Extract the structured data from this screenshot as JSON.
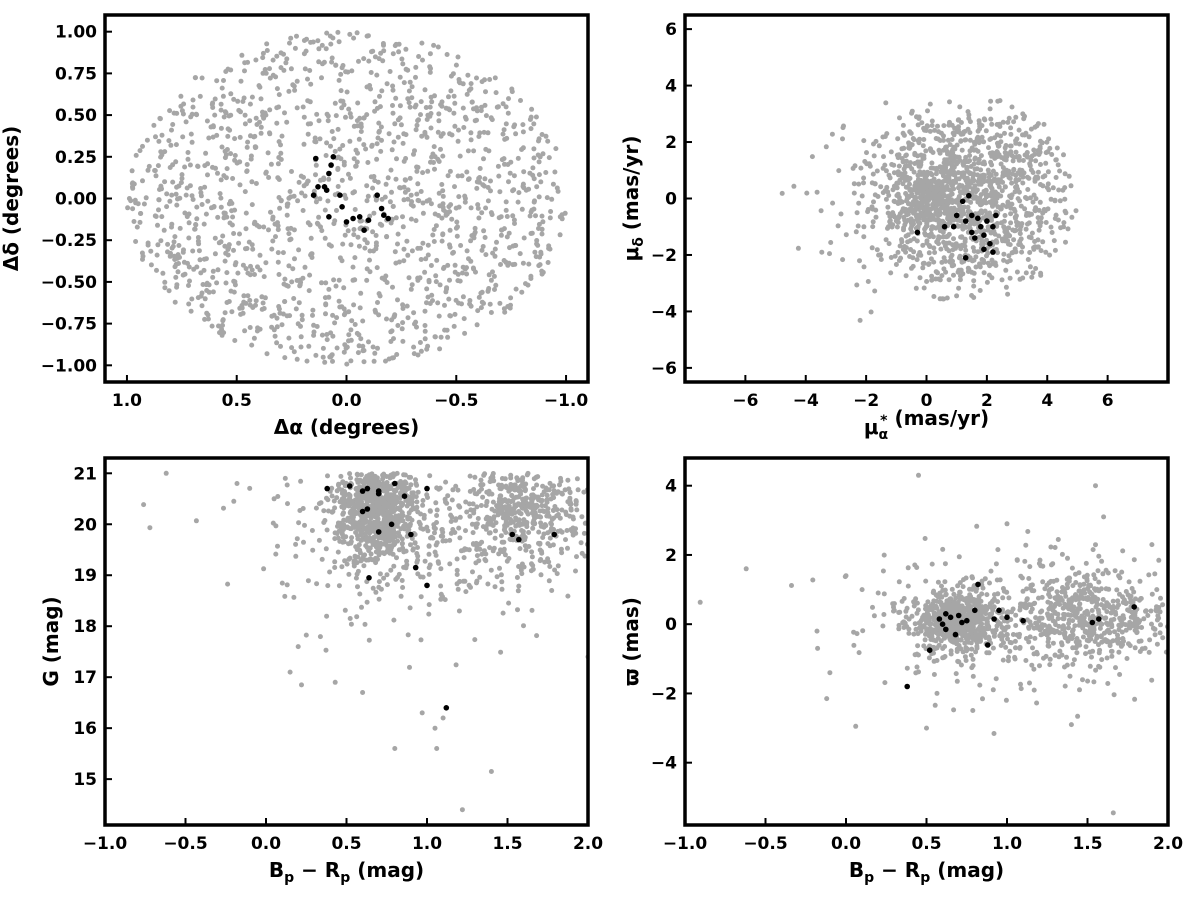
{
  "colors": {
    "field": "#a6a6a6",
    "members": "#000000",
    "frame": "#000000"
  },
  "chart_data": [
    {
      "id": "sky",
      "type": "scatter",
      "xlabel": "Δα (degrees)",
      "ylabel": "Δδ (degrees)",
      "xlim": [
        1.1,
        -1.1
      ],
      "ylim": [
        -1.1,
        1.1
      ],
      "xticks": [
        1.0,
        0.5,
        0.0,
        -0.5,
        -1.0
      ],
      "xtick_labels": [
        "1.0",
        "0.5",
        "0.0",
        "−0.5",
        "−1.0"
      ],
      "yticks": [
        1.0,
        0.75,
        0.5,
        0.25,
        0.0,
        -0.25,
        -0.5,
        -0.75,
        -1.0
      ],
      "ytick_labels": [
        "1.00",
        "0.75",
        "0.50",
        "0.25",
        "0.00",
        "−0.25",
        "−0.50",
        "−0.75",
        "−1.00"
      ],
      "series": [
        {
          "role": "field",
          "color": "#a6a6a6",
          "distribution": "uniform_disk",
          "center": [
            0,
            0
          ],
          "radius": 1.0,
          "count": 1500,
          "seed": 11
        },
        {
          "role": "members",
          "color": "#000000",
          "points": [
            [
              0.14,
              0.24
            ],
            [
              0.08,
              0.15
            ],
            [
              0.07,
              0.2
            ],
            [
              0.06,
              0.25
            ],
            [
              0.13,
              0.07
            ],
            [
              0.09,
              0.05
            ],
            [
              0.1,
              0.07
            ],
            [
              0.15,
              0.02
            ],
            [
              0.08,
              -0.11
            ],
            [
              0.03,
              0.02
            ],
            [
              0.02,
              -0.05
            ],
            [
              0.0,
              -0.14
            ],
            [
              -0.03,
              -0.12
            ],
            [
              -0.06,
              -0.11
            ],
            [
              -0.08,
              -0.19
            ],
            [
              -0.1,
              -0.13
            ],
            [
              -0.14,
              0.02
            ],
            [
              -0.16,
              -0.06
            ],
            [
              -0.17,
              -0.1
            ],
            [
              -0.19,
              -0.12
            ]
          ]
        }
      ]
    },
    {
      "id": "proper-motion",
      "type": "scatter",
      "xlabel_main": "μ",
      "xlabel_sub": "α",
      "xlabel_sup": "*",
      "xlabel_rest": "  (mas/yr)",
      "ylabel_main": "μ",
      "ylabel_sub": "δ",
      "ylabel_rest": " (mas/yr)",
      "xlim": [
        -8,
        8
      ],
      "ylim": [
        -6.5,
        6.5
      ],
      "xticks": [
        -6,
        -4,
        -2,
        0,
        2,
        4,
        6
      ],
      "xtick_labels": [
        "−6",
        "−4",
        "−2",
        "0",
        "2",
        "4",
        "6"
      ],
      "yticks": [
        6,
        4,
        2,
        0,
        -2,
        -4,
        -6
      ],
      "ytick_labels": [
        "6",
        "4",
        "2",
        "0",
        "−2",
        "−4",
        "−6"
      ],
      "series": [
        {
          "role": "field",
          "color": "#a6a6a6",
          "distribution": "clipped_gaussian_disk",
          "center": [
            1.3,
            0.0
          ],
          "radius": 3.7,
          "sigma": [
            1.8,
            1.8
          ],
          "count": 1200,
          "seed": 23
        },
        {
          "role": "field-core",
          "color": "#a6a6a6",
          "distribution": "gaussian",
          "center": [
            0.0,
            0.0
          ],
          "sigma": [
            0.5,
            0.6
          ],
          "count": 250,
          "seed": 31
        },
        {
          "role": "field-halo",
          "color": "#a6a6a6",
          "distribution": "gaussian",
          "center": [
            -1.0,
            -0.5
          ],
          "sigma": [
            1.6,
            1.6
          ],
          "count": 90,
          "seed": 37
        },
        {
          "role": "members",
          "color": "#000000",
          "points": [
            [
              -0.3,
              -1.2
            ],
            [
              0.6,
              -1.0
            ],
            [
              0.9,
              -1.0
            ],
            [
              1.0,
              -0.6
            ],
            [
              1.2,
              -0.1
            ],
            [
              1.3,
              -2.1
            ],
            [
              1.4,
              0.1
            ],
            [
              1.3,
              -0.8
            ],
            [
              1.5,
              -0.6
            ],
            [
              1.5,
              -1.2
            ],
            [
              1.6,
              -1.4
            ],
            [
              1.7,
              -0.7
            ],
            [
              1.8,
              -1.0
            ],
            [
              1.9,
              -1.3
            ],
            [
              2.0,
              -0.8
            ],
            [
              2.1,
              -1.6
            ],
            [
              2.2,
              -1.0
            ],
            [
              2.3,
              -0.6
            ],
            [
              1.9,
              -1.8
            ],
            [
              2.2,
              -1.9
            ]
          ]
        }
      ]
    },
    {
      "id": "cmd",
      "type": "scatter",
      "xlabel_main": "B",
      "xlabel_sub": "p",
      "xlabel_mid": " − R",
      "xlabel_sub2": "p",
      "xlabel_rest": " (mag)",
      "ylabel": "G (mag)",
      "xlim": [
        -1.0,
        2.0
      ],
      "ylim": [
        14.1,
        21.3
      ],
      "xticks": [
        -1.0,
        -0.5,
        0.0,
        0.5,
        1.0,
        1.5,
        2.0
      ],
      "xtick_labels": [
        "−1.0",
        "−0.5",
        "0.0",
        "0.5",
        "1.0",
        "1.5",
        "2.0"
      ],
      "yticks": [
        21,
        20,
        19,
        18,
        17,
        16,
        15
      ],
      "ytick_labels": [
        "21",
        "20",
        "19",
        "18",
        "17",
        "16",
        "15"
      ],
      "series": [
        {
          "role": "field-cluster",
          "color": "#a6a6a6",
          "distribution": "gaussian_clip",
          "center": [
            0.68,
            20.3
          ],
          "sigma": [
            0.13,
            0.55
          ],
          "ymax": 21.0,
          "count": 700,
          "seed": 41
        },
        {
          "role": "field-red",
          "color": "#a6a6a6",
          "distribution": "gaussian_clip",
          "center": [
            1.6,
            20.3
          ],
          "sigma": [
            0.18,
            0.5
          ],
          "ymax": 21.0,
          "count": 300,
          "seed": 43
        },
        {
          "role": "field-spread",
          "color": "#a6a6a6",
          "distribution": "gaussian_clip",
          "center": [
            1.1,
            20.0
          ],
          "sigma": [
            0.55,
            1.0
          ],
          "ymax": 21.0,
          "count": 450,
          "seed": 47
        },
        {
          "role": "field-sparse",
          "color": "#a6a6a6",
          "points": [
            [
              -0.62,
              21.0
            ],
            [
              -0.2,
              20.45
            ],
            [
              -0.18,
              20.8
            ],
            [
              0.15,
              17.1
            ],
            [
              0.2,
              17.6
            ],
            [
              0.43,
              16.9
            ],
            [
              0.6,
              16.7
            ],
            [
              0.8,
              15.6
            ],
            [
              0.97,
              16.3
            ],
            [
              1.06,
              15.6
            ],
            [
              1.22,
              14.4
            ],
            [
              1.4,
              15.15
            ],
            [
              1.05,
              16.0
            ],
            [
              1.1,
              16.2
            ],
            [
              2.0,
              17.4
            ],
            [
              0.12,
              20.9
            ],
            [
              0.05,
              20.5
            ]
          ]
        },
        {
          "role": "members",
          "color": "#000000",
          "points": [
            [
              0.38,
              20.7
            ],
            [
              0.52,
              20.75
            ],
            [
              0.6,
              20.65
            ],
            [
              0.63,
              20.7
            ],
            [
              0.7,
              20.65
            ],
            [
              0.7,
              20.6
            ],
            [
              0.8,
              20.8
            ],
            [
              0.86,
              20.55
            ],
            [
              1.0,
              20.7
            ],
            [
              0.6,
              20.25
            ],
            [
              0.63,
              20.3
            ],
            [
              0.78,
              20.0
            ],
            [
              0.7,
              19.85
            ],
            [
              0.9,
              19.8
            ],
            [
              0.64,
              18.95
            ],
            [
              0.93,
              19.15
            ],
            [
              1.0,
              18.8
            ],
            [
              1.12,
              16.4
            ],
            [
              1.53,
              19.8
            ],
            [
              1.57,
              19.7
            ],
            [
              1.79,
              19.8
            ]
          ]
        }
      ]
    },
    {
      "id": "parallax",
      "type": "scatter",
      "xlabel_main": "B",
      "xlabel_sub": "p",
      "xlabel_mid": " − R",
      "xlabel_sub2": "p",
      "xlabel_rest": " (mag)",
      "ylabel": "ϖ (mas)",
      "xlim": [
        -1.0,
        2.0
      ],
      "ylim": [
        -5.8,
        4.8
      ],
      "xticks": [
        -1.0,
        -0.5,
        0.0,
        0.5,
        1.0,
        1.5,
        2.0
      ],
      "xtick_labels": [
        "−1.0",
        "−0.5",
        "0.0",
        "0.5",
        "1.0",
        "1.5",
        "2.0"
      ],
      "yticks": [
        4,
        2,
        0,
        -2,
        -4
      ],
      "ytick_labels": [
        "4",
        "2",
        "0",
        "−2",
        "−4"
      ],
      "series": [
        {
          "role": "field-cluster",
          "color": "#a6a6a6",
          "distribution": "gaussian",
          "center": [
            0.7,
            0.1
          ],
          "sigma": [
            0.14,
            0.45
          ],
          "count": 650,
          "seed": 53
        },
        {
          "role": "field-red",
          "color": "#a6a6a6",
          "distribution": "gaussian",
          "center": [
            1.5,
            0.2
          ],
          "sigma": [
            0.25,
            0.55
          ],
          "count": 420,
          "seed": 59
        },
        {
          "role": "field-spread",
          "color": "#a6a6a6",
          "distribution": "gaussian",
          "center": [
            1.1,
            0.1
          ],
          "sigma": [
            0.5,
            1.1
          ],
          "count": 330,
          "seed": 61
        },
        {
          "role": "field-sparse",
          "color": "#a6a6a6",
          "points": [
            [
              -0.62,
              1.6
            ],
            [
              -0.18,
              -0.2
            ],
            [
              -0.12,
              -2.15
            ],
            [
              -0.1,
              -1.4
            ],
            [
              0.0,
              1.4
            ],
            [
              0.06,
              -2.95
            ],
            [
              0.3,
              0.4
            ],
            [
              0.45,
              4.3
            ],
            [
              1.55,
              4.0
            ],
            [
              1.66,
              -5.45
            ],
            [
              1.6,
              3.1
            ],
            [
              1.0,
              2.9
            ],
            [
              0.5,
              -3.0
            ],
            [
              1.4,
              -2.9
            ],
            [
              1.9,
              2.3
            ],
            [
              0.1,
              1.0
            ],
            [
              0.2,
              0.9
            ]
          ]
        },
        {
          "role": "members",
          "color": "#000000",
          "points": [
            [
              0.38,
              -1.8
            ],
            [
              0.52,
              -0.75
            ],
            [
              0.58,
              0.15
            ],
            [
              0.6,
              0.0
            ],
            [
              0.62,
              -0.15
            ],
            [
              0.65,
              0.2
            ],
            [
              0.68,
              -0.3
            ],
            [
              0.7,
              0.25
            ],
            [
              0.72,
              0.05
            ],
            [
              0.8,
              0.4
            ],
            [
              0.82,
              1.15
            ],
            [
              0.88,
              -0.6
            ],
            [
              0.92,
              0.15
            ],
            [
              0.95,
              0.4
            ],
            [
              1.0,
              0.2
            ],
            [
              1.1,
              0.1
            ],
            [
              1.53,
              0.05
            ],
            [
              1.57,
              0.15
            ],
            [
              1.79,
              0.5
            ],
            [
              0.62,
              0.3
            ],
            [
              0.75,
              0.1
            ]
          ]
        }
      ]
    }
  ]
}
